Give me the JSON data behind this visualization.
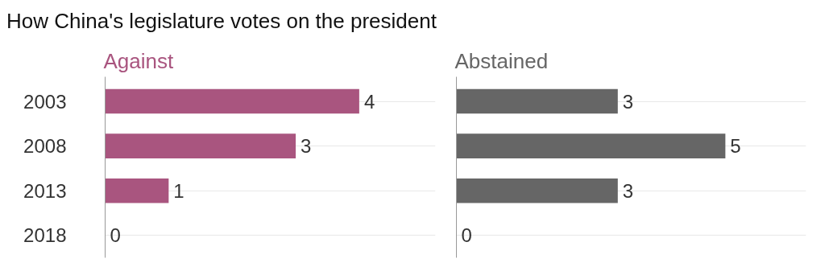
{
  "chart_data": [
    {
      "type": "bar",
      "orientation": "horizontal",
      "title": "How China's legislature votes on the president",
      "categories": [
        "2003",
        "2008",
        "2013",
        "2018"
      ],
      "series": [
        {
          "name": "Against",
          "color": "#a9557f",
          "values": [
            4,
            3,
            1,
            0
          ]
        }
      ],
      "data_labels": true,
      "grid": "y"
    },
    {
      "type": "bar",
      "orientation": "horizontal",
      "categories": [
        "2003",
        "2008",
        "2013",
        "2018"
      ],
      "series": [
        {
          "name": "Abstained",
          "color": "#666666",
          "values": [
            3,
            5,
            3,
            0
          ]
        }
      ],
      "data_labels": true,
      "grid": "y",
      "tick_labels": false
    }
  ]
}
